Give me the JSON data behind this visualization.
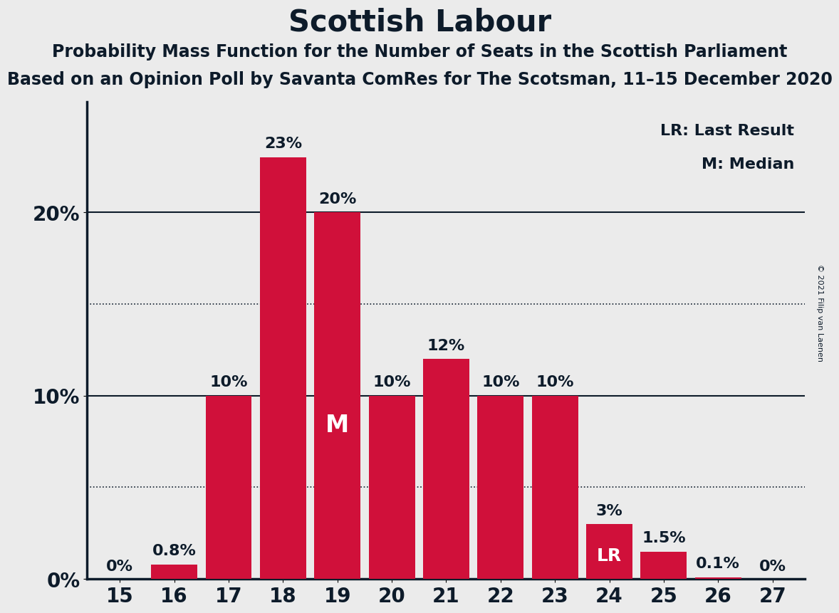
{
  "title": "Scottish Labour",
  "subtitle1": "Probability Mass Function for the Number of Seats in the Scottish Parliament",
  "subtitle2": "Based on an Opinion Poll by Savanta ComRes for The Scotsman, 11–15 December 2020",
  "copyright": "© 2021 Filip van Laenen",
  "categories": [
    15,
    16,
    17,
    18,
    19,
    20,
    21,
    22,
    23,
    24,
    25,
    26,
    27
  ],
  "values": [
    0.0,
    0.8,
    10.0,
    23.0,
    20.0,
    10.0,
    12.0,
    10.0,
    10.0,
    3.0,
    1.5,
    0.1,
    0.0
  ],
  "bar_labels": [
    "0%",
    "0.8%",
    "10%",
    "23%",
    "20%",
    "10%",
    "12%",
    "10%",
    "10%",
    "3%",
    "1.5%",
    "0.1%",
    "0%"
  ],
  "bar_color": "#D0103A",
  "background_color": "#EBEBEB",
  "text_color": "#0D1B2A",
  "ylabel_ticks": [
    0,
    10,
    20
  ],
  "ylim": [
    0,
    26
  ],
  "median_seat": 19,
  "lr_seat": 24,
  "legend_lr": "LR: Last Result",
  "legend_m": "M: Median",
  "solid_lines": [
    10,
    20
  ],
  "dotted_lines": [
    5.0,
    15.0
  ],
  "label_fontsize": 16,
  "title_fontsize": 30,
  "subtitle_fontsize": 17,
  "tick_fontsize": 20,
  "ytick_fontsize": 20,
  "bar_label_fontsize": 16,
  "bar_width": 0.85,
  "m_fontsize": 24,
  "lr_fontsize": 18
}
